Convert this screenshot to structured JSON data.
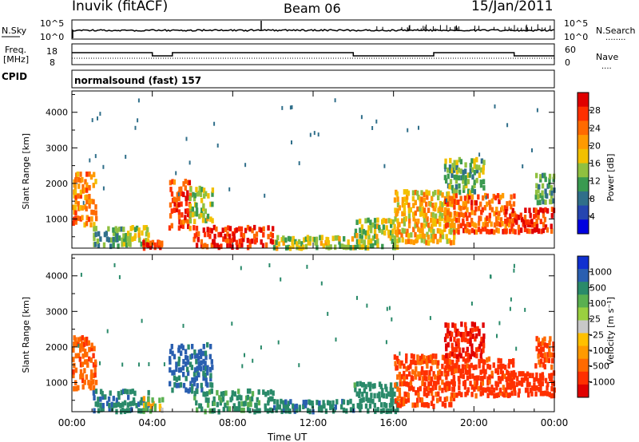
{
  "header": {
    "site": "Inuvik (fitACF)",
    "beam": "Beam 06",
    "date": "15/Jan/2011"
  },
  "strip1": {
    "left_label": "N.Sky",
    "left_ticks": [
      "10^5",
      "10^0"
    ],
    "right_ticks": [
      "10^5",
      "10^0"
    ],
    "right_label": "N.Search",
    "right_dots": "........"
  },
  "strip2": {
    "left_label_1": "Freq.",
    "left_label_2": "[MHz]",
    "left_ticks": [
      "18",
      "8"
    ],
    "right_ticks": [
      "60",
      "0"
    ],
    "right_label": "Nave",
    "right_dots": "....",
    "cpid_label": "CPID"
  },
  "mode_text": "normalsound (fast) 157",
  "xaxis": {
    "ticks": [
      "00:00",
      "04:00",
      "08:00",
      "12:00",
      "16:00",
      "20:00",
      "00:00"
    ],
    "label": "Time UT"
  },
  "chart_data": [
    {
      "type": "heatmap",
      "panel": "power",
      "ylabel": "Slant Range [km]",
      "yticks": [
        "4000",
        "3000",
        "2000",
        "1000"
      ],
      "ylim": [
        180,
        4600
      ],
      "xlim_hours": [
        0,
        24
      ],
      "colorbar": {
        "label": "Power [dB]",
        "ticks": [
          "28",
          "24",
          "20",
          "16",
          "12",
          "8",
          "4"
        ],
        "colors": [
          "#e00000",
          "#ff3000",
          "#ff6a00",
          "#ff9a00",
          "#f2c000",
          "#90c040",
          "#3a9a50",
          "#306f8a",
          "#2545b0",
          "#0000e0"
        ]
      },
      "data_clusters": [
        {
          "t": [
            0.0,
            1.2
          ],
          "range": [
            900,
            2400
          ],
          "value": 22
        },
        {
          "t": [
            1.0,
            2.5
          ],
          "range": [
            300,
            900
          ],
          "value": 10
        },
        {
          "t": [
            2.5,
            3.8
          ],
          "range": [
            300,
            900
          ],
          "value": 14
        },
        {
          "t": [
            3.5,
            4.5
          ],
          "range": [
            250,
            450
          ],
          "value": 26
        },
        {
          "t": [
            4.8,
            5.9
          ],
          "range": [
            800,
            2200
          ],
          "value": 26
        },
        {
          "t": [
            5.8,
            7.0
          ],
          "range": [
            1000,
            2000
          ],
          "value": 14
        },
        {
          "t": [
            6.0,
            10.0
          ],
          "range": [
            250,
            900
          ],
          "value": 28
        },
        {
          "t": [
            10.0,
            14.0
          ],
          "range": [
            250,
            600
          ],
          "value": 14
        },
        {
          "t": [
            14.0,
            16.2
          ],
          "range": [
            250,
            1100
          ],
          "value": 14
        },
        {
          "t": [
            16.0,
            19.0
          ],
          "range": [
            400,
            1900
          ],
          "value": 18
        },
        {
          "t": [
            18.5,
            22.0
          ],
          "range": [
            700,
            1800
          ],
          "value": 24
        },
        {
          "t": [
            21.5,
            24.0
          ],
          "range": [
            700,
            1400
          ],
          "value": 28
        },
        {
          "t": [
            18.5,
            20.5
          ],
          "range": [
            1800,
            2800
          ],
          "value": 12
        },
        {
          "t": [
            23.0,
            24.0
          ],
          "range": [
            1500,
            2400
          ],
          "value": 10
        }
      ]
    },
    {
      "type": "heatmap",
      "panel": "velocity",
      "ylabel": "Slant Range [km]",
      "yticks": [
        "4000",
        "3000",
        "2000",
        "1000"
      ],
      "ylim": [
        180,
        4600
      ],
      "xlim_hours": [
        0,
        24
      ],
      "colorbar": {
        "label": "Velocity [m s⁻¹]",
        "ticks": [
          "1000",
          "500",
          "100",
          "25",
          "-25",
          "-100",
          "-500",
          "-1000"
        ],
        "colors": [
          "#1030d0",
          "#2a5fb0",
          "#2a8a6a",
          "#5ab050",
          "#9ad040",
          "#c8c8c8",
          "#ffc000",
          "#ff9a00",
          "#ff6a00",
          "#ff3000",
          "#e00000"
        ]
      },
      "data_clusters": [
        {
          "t": [
            0.0,
            1.2
          ],
          "range": [
            900,
            2400
          ],
          "value": -100
        },
        {
          "t": [
            1.0,
            3.8
          ],
          "range": [
            250,
            900
          ],
          "value": 100
        },
        {
          "t": [
            3.5,
            4.5
          ],
          "range": [
            250,
            700
          ],
          "value": 0
        },
        {
          "t": [
            4.8,
            7.0
          ],
          "range": [
            800,
            2200
          ],
          "value": 150
        },
        {
          "t": [
            6.0,
            10.0
          ],
          "range": [
            250,
            900
          ],
          "value": 50
        },
        {
          "t": [
            10.0,
            14.0
          ],
          "range": [
            250,
            600
          ],
          "value": 100
        },
        {
          "t": [
            14.0,
            16.2
          ],
          "range": [
            250,
            1100
          ],
          "value": 60
        },
        {
          "t": [
            16.0,
            19.0
          ],
          "range": [
            400,
            1900
          ],
          "value": -150
        },
        {
          "t": [
            18.5,
            22.0
          ],
          "range": [
            700,
            1800
          ],
          "value": -200
        },
        {
          "t": [
            21.5,
            24.0
          ],
          "range": [
            700,
            1400
          ],
          "value": -300
        },
        {
          "t": [
            18.5,
            20.5
          ],
          "range": [
            1800,
            2800
          ],
          "value": -500
        },
        {
          "t": [
            23.0,
            24.0
          ],
          "range": [
            1500,
            2400
          ],
          "value": -150
        }
      ]
    }
  ]
}
